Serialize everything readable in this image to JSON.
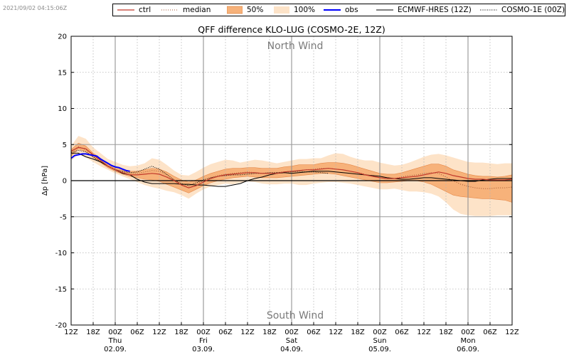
{
  "timestamp": "2021/09/02 04:15:06Z",
  "colors": {
    "ctrl": "#c0392b",
    "median": "#a0522d",
    "band50": "#f7b27a",
    "band100": "#fde3c8",
    "obs": "#0000ff",
    "ecmwf": "#000000",
    "cosmo1e": "#000000"
  },
  "legend": [
    {
      "key": "ctrl",
      "label": "ctrl",
      "style": "line-red"
    },
    {
      "key": "median",
      "label": "median",
      "style": "dotted-red"
    },
    {
      "key": "band50",
      "label": "50%",
      "style": "patch-dark"
    },
    {
      "key": "band100",
      "label": "100%",
      "style": "patch-light"
    },
    {
      "key": "obs",
      "label": "obs",
      "style": "line-blue"
    },
    {
      "key": "ecmwf",
      "label": "ECMWF-HRES (12Z)",
      "style": "line-black"
    },
    {
      "key": "cosmo1e",
      "label": "COSMO-1E (00Z)",
      "style": "dotted-black"
    }
  ],
  "chart_data": {
    "type": "line",
    "title": "QFF difference KLO-LUG (COSMO-2E, 12Z)",
    "ylabel": "Δp [hPa]",
    "xlabel": "",
    "ylim": [
      -20,
      20
    ],
    "xlim_hours": [
      0,
      120
    ],
    "yticks": [
      20,
      15,
      10,
      5,
      0,
      -5,
      -10,
      -15,
      -20
    ],
    "x_hour_labels": [
      "12Z",
      "18Z",
      "00Z",
      "06Z",
      "12Z",
      "18Z",
      "00Z",
      "06Z",
      "12Z",
      "18Z",
      "00Z",
      "06Z",
      "12Z",
      "18Z",
      "00Z",
      "06Z",
      "12Z",
      "18Z",
      "00Z",
      "06Z",
      "12Z"
    ],
    "day_labels": [
      {
        "hour": 12,
        "day": "Thu",
        "date": "02.09."
      },
      {
        "hour": 36,
        "day": "Fri",
        "date": "03.09."
      },
      {
        "hour": 60,
        "day": "Sat",
        "date": "04.09."
      },
      {
        "hour": 84,
        "day": "Sun",
        "date": "05.09."
      },
      {
        "hour": 108,
        "day": "Mon",
        "date": "06.09."
      }
    ],
    "annotations": {
      "top": "North Wind",
      "bottom": "South Wind"
    },
    "series_hours": [
      0,
      2,
      4,
      6,
      8,
      10,
      12,
      14,
      16,
      18,
      20,
      22,
      24,
      26,
      28,
      30,
      32,
      34,
      36,
      38,
      40,
      42,
      44,
      46,
      48,
      50,
      52,
      54,
      56,
      58,
      60,
      62,
      64,
      66,
      68,
      70,
      72,
      74,
      76,
      78,
      80,
      82,
      84,
      86,
      88,
      90,
      92,
      94,
      96,
      98,
      100,
      102,
      104,
      106,
      108,
      110,
      112,
      114,
      116,
      118,
      120
    ],
    "band100_upper": [
      4.8,
      6.2,
      5.8,
      4.6,
      3.8,
      3.0,
      2.6,
      2.2,
      2.0,
      2.1,
      2.4,
      3.1,
      2.9,
      2.2,
      1.4,
      0.8,
      0.7,
      1.2,
      1.8,
      2.3,
      2.6,
      2.9,
      2.8,
      2.5,
      2.7,
      2.9,
      2.8,
      2.6,
      2.4,
      2.6,
      2.8,
      3.0,
      3.0,
      3.1,
      3.1,
      3.5,
      3.8,
      3.7,
      3.3,
      3.0,
      2.8,
      2.8,
      2.5,
      2.3,
      2.1,
      2.2,
      2.5,
      2.9,
      3.3,
      3.6,
      3.7,
      3.5,
      3.2,
      2.9,
      2.6,
      2.5,
      2.5,
      2.4,
      2.3,
      2.4,
      2.4
    ],
    "band100_lower": [
      2.8,
      3.6,
      3.2,
      2.6,
      2.0,
      1.5,
      1.0,
      0.6,
      0.2,
      -0.2,
      -0.6,
      -0.9,
      -1.1,
      -1.4,
      -1.6,
      -2.0,
      -2.5,
      -1.8,
      -1.2,
      -0.8,
      -0.6,
      -0.4,
      -0.5,
      -0.3,
      -0.1,
      -0.2,
      -0.4,
      -0.5,
      -0.5,
      -0.4,
      -0.4,
      -0.6,
      -0.6,
      -0.4,
      -0.3,
      -0.2,
      -0.2,
      -0.3,
      -0.4,
      -0.6,
      -0.8,
      -1.0,
      -1.2,
      -1.2,
      -1.1,
      -1.3,
      -1.5,
      -1.5,
      -1.6,
      -1.8,
      -2.2,
      -3.0,
      -4.0,
      -4.6,
      -4.8,
      -4.9,
      -4.9,
      -4.9,
      -4.8,
      -4.8,
      -4.8
    ],
    "band50_upper": [
      4.3,
      5.2,
      4.8,
      3.8,
      3.1,
      2.4,
      1.9,
      1.6,
      1.3,
      1.3,
      1.5,
      1.7,
      1.6,
      1.2,
      0.6,
      0.1,
      -0.2,
      0.1,
      0.6,
      1.0,
      1.3,
      1.6,
      1.7,
      1.7,
      1.8,
      1.8,
      1.7,
      1.7,
      1.7,
      1.9,
      2.0,
      2.2,
      2.2,
      2.2,
      2.4,
      2.5,
      2.5,
      2.4,
      2.2,
      1.9,
      1.6,
      1.3,
      1.0,
      0.9,
      0.9,
      1.1,
      1.4,
      1.7,
      2.0,
      2.3,
      2.3,
      2.0,
      1.5,
      1.2,
      0.9,
      0.7,
      0.6,
      0.6,
      0.5,
      0.6,
      0.8
    ],
    "band50_lower": [
      3.4,
      4.4,
      4.0,
      3.2,
      2.5,
      1.8,
      1.3,
      0.9,
      0.6,
      0.4,
      0.2,
      0.1,
      -0.1,
      -0.5,
      -0.9,
      -1.3,
      -1.7,
      -1.2,
      -0.7,
      -0.3,
      0.0,
      0.2,
      0.4,
      0.5,
      0.6,
      0.5,
      0.4,
      0.4,
      0.4,
      0.5,
      0.6,
      0.7,
      0.8,
      0.9,
      1.0,
      1.0,
      0.9,
      0.7,
      0.5,
      0.3,
      0.1,
      -0.1,
      -0.3,
      -0.3,
      -0.2,
      -0.1,
      0.0,
      0.0,
      -0.2,
      -0.5,
      -1.0,
      -1.5,
      -2.0,
      -2.2,
      -2.3,
      -2.4,
      -2.5,
      -2.5,
      -2.6,
      -2.7,
      -3.0
    ],
    "ctrl": [
      4.1,
      4.6,
      4.4,
      3.6,
      2.8,
      2.0,
      1.5,
      1.1,
      0.8,
      0.8,
      0.9,
      1.0,
      0.9,
      0.5,
      0.0,
      -0.6,
      -1.0,
      -0.7,
      -0.2,
      0.3,
      0.6,
      0.8,
      0.9,
      1.0,
      1.1,
      1.1,
      1.0,
      1.0,
      1.0,
      1.2,
      1.3,
      1.4,
      1.5,
      1.5,
      1.6,
      1.7,
      1.6,
      1.5,
      1.3,
      1.1,
      0.8,
      0.6,
      0.4,
      0.3,
      0.3,
      0.4,
      0.5,
      0.6,
      0.8,
      1.0,
      1.2,
      1.0,
      0.7,
      0.5,
      0.3,
      0.2,
      0.2,
      0.1,
      0.1,
      0.1,
      0.2
    ],
    "median": [
      4.0,
      4.7,
      4.3,
      3.5,
      2.8,
      2.1,
      1.6,
      1.2,
      1.0,
      1.0,
      1.2,
      1.4,
      1.3,
      0.8,
      0.1,
      -0.5,
      -1.0,
      -0.5,
      0.0,
      0.4,
      0.7,
      0.9,
      1.0,
      1.1,
      1.2,
      1.1,
      1.0,
      1.0,
      1.1,
      1.2,
      1.3,
      1.4,
      1.5,
      1.6,
      1.7,
      1.7,
      1.6,
      1.5,
      1.3,
      1.1,
      0.9,
      0.6,
      0.4,
      0.3,
      0.3,
      0.5,
      0.7,
      0.8,
      1.0,
      1.1,
      1.0,
      0.5,
      0.0,
      -0.5,
      -0.8,
      -1.0,
      -1.1,
      -1.1,
      -1.0,
      -1.0,
      -0.9
    ],
    "obs_hours": [
      0,
      1,
      2,
      3,
      4,
      5,
      6,
      7,
      8,
      9,
      10,
      11,
      12,
      13,
      14,
      15,
      16
    ],
    "obs": [
      3.1,
      3.5,
      3.6,
      3.7,
      3.7,
      3.6,
      3.5,
      3.4,
      3.0,
      2.7,
      2.4,
      2.1,
      1.9,
      1.8,
      1.6,
      1.4,
      1.3
    ],
    "ecmwf": [
      3.8,
      3.8,
      3.3,
      3.0,
      2.6,
      2.0,
      1.5,
      1.0,
      0.8,
      0.2,
      -0.2,
      -0.4,
      -0.4,
      -0.4,
      -0.4,
      -0.5,
      -0.5,
      -0.6,
      -0.6,
      -0.7,
      -0.8,
      -0.8,
      -0.6,
      -0.4,
      0.0,
      0.3,
      0.5,
      0.8,
      1.0,
      1.1,
      1.0,
      1.1,
      1.2,
      1.3,
      1.3,
      1.3,
      1.2,
      1.1,
      1.0,
      0.9,
      0.8,
      0.7,
      0.6,
      0.4,
      0.3,
      0.2,
      0.2,
      0.3,
      0.4,
      0.4,
      0.3,
      0.2,
      0.1,
      0.0,
      -0.1,
      -0.1,
      0.1,
      0.2,
      0.3,
      0.3,
      0.3
    ],
    "cosmo1e_hours": [
      0,
      2,
      4,
      6,
      8,
      10,
      12,
      14,
      16,
      18,
      20,
      22,
      24,
      26,
      28,
      30,
      32,
      34,
      36,
      38,
      40,
      42,
      44,
      46,
      48,
      50,
      52,
      54,
      56,
      58,
      60,
      62,
      64,
      66,
      68,
      70
    ],
    "cosmo1e": [
      3.9,
      4.2,
      4.0,
      3.3,
      2.6,
      2.0,
      1.5,
      1.3,
      1.1,
      1.2,
      1.6,
      2.0,
      1.6,
      0.9,
      0.1,
      -0.4,
      -0.7,
      -0.3,
      0.1,
      0.4,
      0.6,
      0.7,
      0.8,
      0.8,
      0.9,
      1.0,
      1.0,
      1.1,
      1.1,
      1.2,
      1.2,
      1.3,
      1.2,
      1.2,
      1.1,
      1.0
    ]
  }
}
